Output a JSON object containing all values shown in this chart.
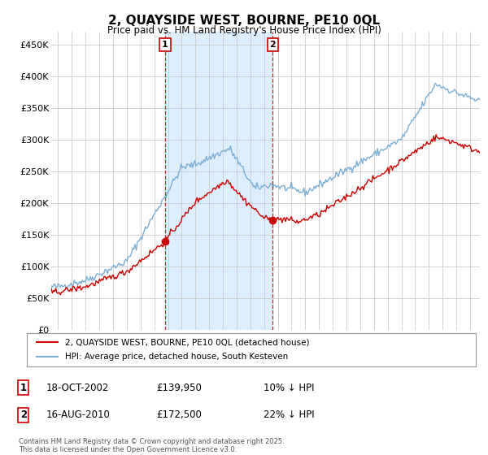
{
  "title": "2, QUAYSIDE WEST, BOURNE, PE10 0QL",
  "subtitle": "Price paid vs. HM Land Registry's House Price Index (HPI)",
  "ylabel_ticks": [
    "£0",
    "£50K",
    "£100K",
    "£150K",
    "£200K",
    "£250K",
    "£300K",
    "£350K",
    "£400K",
    "£450K"
  ],
  "ytick_values": [
    0,
    50000,
    100000,
    150000,
    200000,
    250000,
    300000,
    350000,
    400000,
    450000
  ],
  "ylim": [
    0,
    470000
  ],
  "xlim_start": 1994.5,
  "xlim_end": 2025.7,
  "xticks": [
    1995,
    1996,
    1997,
    1998,
    1999,
    2000,
    2001,
    2002,
    2003,
    2004,
    2005,
    2006,
    2007,
    2008,
    2009,
    2010,
    2011,
    2012,
    2013,
    2014,
    2015,
    2016,
    2017,
    2018,
    2019,
    2020,
    2021,
    2022,
    2023,
    2024,
    2025
  ],
  "sale1_x": 2002.79,
  "sale1_y": 139950,
  "sale2_x": 2010.62,
  "sale2_y": 172500,
  "vline1_x": 2002.79,
  "vline2_x": 2010.62,
  "legend_line1_label": "2, QUAYSIDE WEST, BOURNE, PE10 0QL (detached house)",
  "legend_line2_label": "HPI: Average price, detached house, South Kesteven",
  "table_rows": [
    {
      "num": "1",
      "date": "18-OCT-2002",
      "price": "£139,950",
      "hpi": "10% ↓ HPI"
    },
    {
      "num": "2",
      "date": "16-AUG-2010",
      "price": "£172,500",
      "hpi": "22% ↓ HPI"
    }
  ],
  "footer": "Contains HM Land Registry data © Crown copyright and database right 2025.\nThis data is licensed under the Open Government Licence v3.0.",
  "line_red_color": "#cc0000",
  "line_blue_color": "#7BAFD4",
  "bg_fill_color": "#ddeeff",
  "plot_bg": "#ffffff",
  "vline_color": "#cc0000",
  "marker_color": "#cc0000",
  "grid_color": "#cccccc"
}
